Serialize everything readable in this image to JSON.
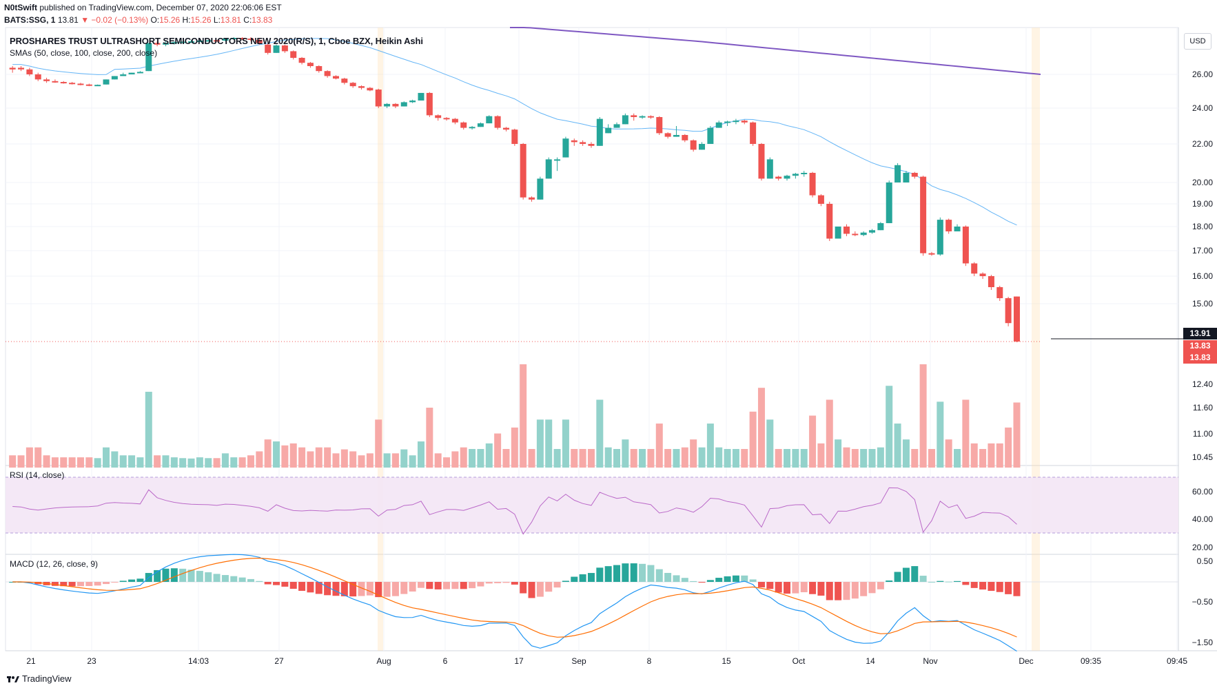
{
  "header": {
    "author": "N0tSwift",
    "published_text": "published on TradingView.com, December 07, 2020 22:06:06 EST",
    "symbol": "BATS:SSG, 1",
    "last": "13.81",
    "change": "▼ −0.02 (−0.13%)",
    "o_label": "O:",
    "o_val": "15.26",
    "h_label": "H:",
    "h_val": "15.26",
    "l_label": "L:",
    "l_val": "13.81",
    "c_label": "C:",
    "c_val": "13.83"
  },
  "currency_button": "USD",
  "footer_brand": "TradingView",
  "colors": {
    "up": "#26a69a",
    "down": "#ef5350",
    "up_vol": "#93d2cb",
    "down_vol": "#f7a9a7",
    "sma50": "#64b5f6",
    "sma200": "#7e57c2",
    "rsi": "#ba68c8",
    "macd": "#2196f3",
    "signal": "#ff6d00"
  },
  "chart_data": [
    {
      "type": "candlestick",
      "title": "PROSHARES TRUST ULTRASHORT SEMICONDUCTORS NEW 2020(R/S), 1, Cboe BZX, Heikin Ashi",
      "overlay_label": "SMAs (50, close, 100, close, 200, close)",
      "price_axis_ticks": [
        "26.00",
        "24.00",
        "22.00",
        "20.00",
        "19.00",
        "18.00",
        "17.00",
        "16.00",
        "15.00",
        "12.40",
        "11.60",
        "11.00",
        "10.45"
      ],
      "time_axis_ticks": [
        "21",
        "23",
        "14:03",
        "27",
        "Aug",
        "6",
        "17",
        "Sep",
        "8",
        "15",
        "Oct",
        "14",
        "Nov",
        "Dec",
        "09:35",
        "09:45"
      ],
      "price_labels": {
        "current": "13.91",
        "last1": "13.83",
        "last2": "13.83"
      },
      "candles": [
        [
          26.4,
          26.5,
          26.1,
          26.3
        ],
        [
          26.4,
          26.5,
          26.2,
          26.3
        ],
        [
          26.3,
          26.4,
          25.9,
          26.0
        ],
        [
          26.0,
          26.1,
          25.6,
          25.7
        ],
        [
          25.7,
          25.8,
          25.5,
          25.6
        ],
        [
          25.6,
          25.7,
          25.5,
          25.55
        ],
        [
          25.55,
          25.6,
          25.45,
          25.5
        ],
        [
          25.5,
          25.55,
          25.4,
          25.45
        ],
        [
          25.45,
          25.5,
          25.35,
          25.4
        ],
        [
          25.4,
          25.45,
          25.3,
          25.35
        ],
        [
          25.35,
          25.4,
          25.35,
          25.38
        ],
        [
          25.4,
          25.7,
          25.4,
          25.7
        ],
        [
          25.7,
          25.9,
          25.7,
          25.9
        ],
        [
          25.9,
          26.1,
          25.9,
          26.0
        ],
        [
          26.0,
          26.1,
          26.0,
          26.1
        ],
        [
          26.1,
          26.2,
          26.1,
          26.15
        ],
        [
          26.2,
          27.9,
          26.2,
          27.9
        ],
        [
          27.9,
          28.0,
          27.7,
          27.8
        ],
        [
          27.8,
          28.0,
          27.7,
          27.9
        ],
        [
          27.9,
          28.0,
          27.8,
          27.95
        ],
        [
          27.95,
          28.0,
          27.9,
          27.98
        ],
        [
          27.98,
          28.1,
          27.9,
          28.0
        ],
        [
          28.0,
          28.1,
          27.95,
          28.05
        ],
        [
          28.05,
          28.1,
          28.0,
          28.08
        ],
        [
          28.08,
          28.1,
          28.0,
          28.05
        ],
        [
          28.05,
          28.2,
          28.0,
          28.2
        ],
        [
          28.2,
          28.3,
          28.1,
          28.25
        ],
        [
          28.25,
          28.3,
          28.1,
          28.2
        ],
        [
          28.2,
          28.3,
          28.0,
          28.1
        ],
        [
          28.1,
          28.2,
          27.8,
          27.9
        ],
        [
          27.8,
          27.9,
          27.2,
          27.3
        ],
        [
          27.3,
          27.8,
          27.3,
          27.75
        ],
        [
          27.75,
          27.8,
          27.3,
          27.4
        ],
        [
          27.4,
          27.45,
          26.9,
          27.0
        ],
        [
          27.0,
          27.05,
          26.6,
          26.7
        ],
        [
          26.7,
          26.75,
          26.4,
          26.5
        ],
        [
          26.5,
          26.55,
          26.1,
          26.2
        ],
        [
          26.2,
          26.25,
          25.8,
          25.9
        ],
        [
          25.9,
          25.95,
          25.7,
          25.75
        ],
        [
          25.75,
          25.8,
          25.4,
          25.5
        ],
        [
          25.5,
          25.55,
          25.2,
          25.3
        ],
        [
          25.3,
          25.35,
          25.1,
          25.2
        ],
        [
          25.2,
          25.25,
          25.0,
          25.05
        ],
        [
          25.1,
          25.15,
          24.0,
          24.1
        ],
        [
          24.1,
          24.3,
          24.0,
          24.25
        ],
        [
          24.25,
          24.3,
          24.0,
          24.1
        ],
        [
          24.1,
          24.4,
          24.1,
          24.35
        ],
        [
          24.35,
          24.5,
          24.3,
          24.45
        ],
        [
          24.45,
          24.9,
          24.45,
          24.9
        ],
        [
          24.9,
          24.95,
          23.5,
          23.6
        ],
        [
          23.6,
          23.65,
          23.3,
          23.45
        ],
        [
          23.45,
          23.5,
          23.3,
          23.4
        ],
        [
          23.4,
          23.45,
          23.1,
          23.2
        ],
        [
          23.2,
          23.25,
          22.8,
          22.9
        ],
        [
          22.9,
          23.0,
          22.8,
          22.95
        ],
        [
          22.95,
          23.2,
          22.95,
          23.15
        ],
        [
          23.15,
          23.6,
          23.15,
          23.55
        ],
        [
          23.55,
          23.6,
          22.8,
          22.9
        ],
        [
          22.9,
          22.95,
          22.7,
          22.8
        ],
        [
          22.8,
          22.85,
          21.9,
          22.0
        ],
        [
          22.0,
          22.05,
          19.2,
          19.3
        ],
        [
          19.3,
          19.35,
          19.1,
          19.2
        ],
        [
          19.2,
          20.3,
          19.2,
          20.2
        ],
        [
          20.2,
          21.3,
          20.2,
          21.2
        ],
        [
          21.2,
          21.3,
          20.6,
          21.2
        ],
        [
          21.3,
          22.4,
          21.3,
          22.3
        ],
        [
          22.2,
          22.3,
          21.9,
          22.1
        ],
        [
          22.1,
          22.2,
          21.9,
          22.0
        ],
        [
          22.0,
          22.1,
          21.8,
          21.9
        ],
        [
          21.9,
          23.5,
          21.9,
          23.4
        ],
        [
          22.6,
          23.1,
          22.6,
          22.9
        ],
        [
          22.9,
          23.2,
          22.9,
          23.1
        ],
        [
          23.1,
          23.7,
          23.1,
          23.6
        ],
        [
          23.6,
          23.7,
          23.3,
          23.5
        ],
        [
          23.5,
          23.6,
          23.4,
          23.55
        ],
        [
          23.55,
          23.6,
          23.4,
          23.5
        ],
        [
          23.5,
          23.55,
          22.5,
          22.6
        ],
        [
          22.6,
          22.65,
          22.3,
          22.4
        ],
        [
          22.4,
          23.0,
          22.4,
          22.5
        ],
        [
          22.5,
          22.55,
          22.1,
          22.2
        ],
        [
          22.2,
          22.25,
          21.6,
          21.7
        ],
        [
          21.7,
          22.1,
          21.7,
          22.0
        ],
        [
          22.0,
          23.0,
          22.0,
          22.9
        ],
        [
          22.9,
          23.3,
          22.9,
          23.2
        ],
        [
          23.2,
          23.3,
          23.0,
          23.25
        ],
        [
          23.25,
          23.4,
          23.1,
          23.3
        ],
        [
          23.3,
          23.35,
          23.1,
          23.2
        ],
        [
          23.2,
          23.25,
          21.9,
          22.0
        ],
        [
          22.0,
          22.05,
          20.1,
          20.2
        ],
        [
          20.2,
          21.3,
          20.2,
          21.2
        ],
        [
          20.3,
          20.35,
          20.1,
          20.2
        ],
        [
          20.2,
          20.4,
          20.1,
          20.35
        ],
        [
          20.35,
          20.5,
          20.2,
          20.45
        ],
        [
          20.45,
          20.6,
          20.3,
          20.5
        ],
        [
          20.5,
          20.55,
          19.3,
          19.4
        ],
        [
          19.4,
          19.45,
          18.9,
          19.0
        ],
        [
          19.0,
          19.1,
          17.4,
          17.5
        ],
        [
          17.5,
          18.0,
          17.5,
          18.0
        ],
        [
          18.0,
          18.1,
          17.6,
          17.7
        ],
        [
          17.7,
          17.8,
          17.6,
          17.65
        ],
        [
          17.65,
          17.8,
          17.6,
          17.75
        ],
        [
          17.75,
          17.9,
          17.7,
          17.85
        ],
        [
          17.85,
          18.2,
          17.85,
          18.15
        ],
        [
          18.15,
          20.1,
          18.15,
          20.0
        ],
        [
          20.0,
          21.0,
          20.0,
          20.9
        ],
        [
          20.0,
          20.6,
          20.0,
          20.5
        ],
        [
          20.5,
          20.55,
          20.2,
          20.3
        ],
        [
          20.3,
          20.35,
          16.8,
          16.9
        ],
        [
          16.9,
          16.95,
          16.8,
          16.85
        ],
        [
          16.85,
          18.4,
          16.8,
          18.3
        ],
        [
          18.3,
          18.35,
          17.7,
          17.8
        ],
        [
          17.8,
          18.1,
          17.8,
          18.0
        ],
        [
          18.0,
          18.05,
          16.4,
          16.5
        ],
        [
          16.5,
          16.55,
          16.0,
          16.1
        ],
        [
          16.1,
          16.15,
          15.9,
          16.0
        ],
        [
          16.0,
          16.05,
          15.5,
          15.6
        ],
        [
          15.6,
          15.65,
          15.1,
          15.2
        ],
        [
          15.2,
          15.25,
          14.3,
          14.4
        ],
        [
          15.26,
          15.26,
          13.81,
          13.83
        ]
      ]
    },
    {
      "type": "bar",
      "title": "Volume",
      "note": "relative volume (0-1)"
    },
    {
      "type": "line",
      "title": "RSI (14, close)",
      "yticks": [
        "60.00",
        "40.00",
        "20.00"
      ],
      "band": [
        30,
        70
      ]
    },
    {
      "type": "bar",
      "title": "MACD (12, 26, close, 9)",
      "yticks": [
        "0.50",
        "−0.50",
        "−1.50"
      ]
    }
  ]
}
